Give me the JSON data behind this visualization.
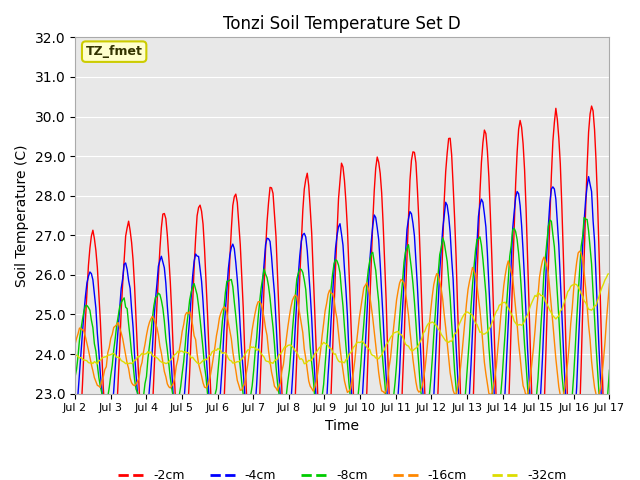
{
  "title": "Tonzi Soil Temperature Set D",
  "xlabel": "Time",
  "ylabel": "Soil Temperature (C)",
  "annotation": "TZ_fmet",
  "ylim": [
    23.0,
    32.0
  ],
  "yticks": [
    23.0,
    24.0,
    25.0,
    26.0,
    27.0,
    28.0,
    29.0,
    30.0,
    31.0,
    32.0
  ],
  "xtick_labels": [
    "Jul 2",
    "Jul 3",
    "Jul 4",
    "Jul 5",
    "Jul 6",
    "Jul 7",
    "Jul 8",
    "Jul 9",
    "Jul 10",
    "Jul 11",
    "Jul 12",
    "Jul 13",
    "Jul 14",
    "Jul 15",
    "Jul 16",
    "Jul 17"
  ],
  "colors": {
    "-2cm": "#ff0000",
    "-4cm": "#0000ff",
    "-8cm": "#00cc00",
    "-16cm": "#ff8800",
    "-32cm": "#dddd00"
  },
  "legend_labels": [
    "-2cm",
    "-4cm",
    "-8cm",
    "-16cm",
    "-32cm"
  ],
  "background_color": "#ffffff",
  "plot_bg_color": "#e8e8e8",
  "grid_color": "#ffffff",
  "n_points_per_day": 24,
  "start_day": 2,
  "end_day": 17
}
